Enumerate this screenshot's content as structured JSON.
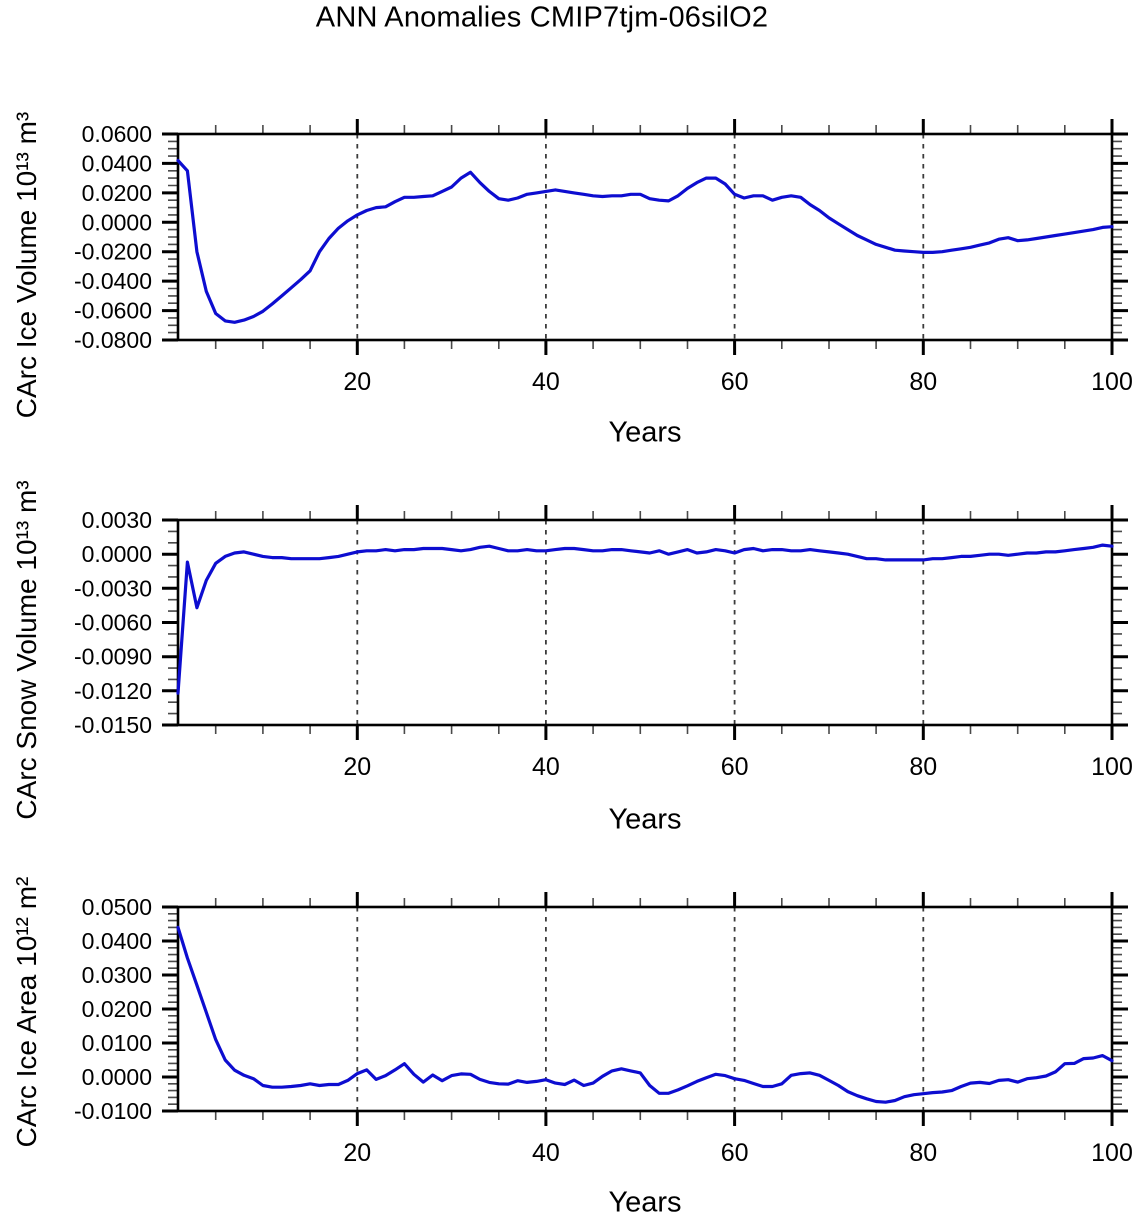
{
  "figure": {
    "title": "ANN Anomalies CMIP7tjm-06silO2",
    "background": "#ffffff",
    "axis_color": "#000000",
    "grid_color": "#3c3c3c",
    "line_color": "#0d0dd0"
  },
  "chart_data": [
    {
      "type": "line",
      "name": "carc-ice-volume",
      "ylabel": "CArc Ice Volume 10¹³ m³",
      "xlabel": "Years",
      "x_range": [
        1,
        100
      ],
      "x_tick_labels": [
        "20",
        "40",
        "60",
        "80",
        "100"
      ],
      "x_major_ticks": [
        20,
        40,
        60,
        80,
        100
      ],
      "x_minor_tick_step": 5,
      "grid_x": [
        20,
        40,
        60,
        80
      ],
      "ylim": [
        -0.08,
        0.06
      ],
      "y_tick_labels": [
        "0.0600",
        "0.0400",
        "0.0200",
        "0.0000",
        "-0.0200",
        "-0.0400",
        "-0.0600",
        "-0.0800"
      ],
      "y_minor_tick_step": 0.005,
      "legend": "none",
      "values": [
        0.042,
        0.035,
        -0.02,
        -0.047,
        -0.062,
        -0.067,
        -0.068,
        -0.0665,
        -0.064,
        -0.0605,
        -0.0555,
        -0.05,
        -0.0445,
        -0.039,
        -0.033,
        -0.02,
        -0.011,
        -0.004,
        0.001,
        0.005,
        0.008,
        0.01,
        0.0105,
        0.014,
        0.017,
        0.017,
        0.0175,
        0.018,
        0.021,
        0.024,
        0.03,
        0.034,
        0.027,
        0.021,
        0.016,
        0.015,
        0.0165,
        0.019,
        0.02,
        0.021,
        0.022,
        0.021,
        0.02,
        0.019,
        0.018,
        0.0175,
        0.018,
        0.018,
        0.019,
        0.019,
        0.016,
        0.015,
        0.0145,
        0.018,
        0.023,
        0.027,
        0.03,
        0.03,
        0.026,
        0.019,
        0.0165,
        0.018,
        0.018,
        0.015,
        0.017,
        0.018,
        0.017,
        0.012,
        0.008,
        0.003,
        -0.001,
        -0.005,
        -0.009,
        -0.012,
        -0.015,
        -0.017,
        -0.019,
        -0.0195,
        -0.02,
        -0.0205,
        -0.0205,
        -0.02,
        -0.019,
        -0.018,
        -0.017,
        -0.0155,
        -0.014,
        -0.0115,
        -0.0105,
        -0.0125,
        -0.012,
        -0.011,
        -0.01,
        -0.009,
        -0.008,
        -0.007,
        -0.006,
        -0.005,
        -0.0035,
        -0.003
      ]
    },
    {
      "type": "line",
      "name": "carc-snow-volume",
      "ylabel": "CArc Snow Volume 10¹³ m³",
      "xlabel": "Years",
      "x_range": [
        1,
        100
      ],
      "x_tick_labels": [
        "20",
        "40",
        "60",
        "80",
        "100"
      ],
      "x_major_ticks": [
        20,
        40,
        60,
        80,
        100
      ],
      "x_minor_tick_step": 5,
      "grid_x": [
        20,
        40,
        60,
        80
      ],
      "ylim": [
        -0.015,
        0.003
      ],
      "y_tick_labels": [
        "0.0030",
        "0.0000",
        "-0.0030",
        "-0.0060",
        "-0.0090",
        "-0.0120",
        "-0.0150"
      ],
      "y_minor_tick_step": 0.001,
      "legend": "none",
      "values": [
        -0.0122,
        -0.0007,
        -0.0047,
        -0.0023,
        -0.0008,
        -0.0002,
        0.0001,
        0.0002,
        0.0,
        -0.0002,
        -0.0003,
        -0.0003,
        -0.0004,
        -0.0004,
        -0.0004,
        -0.0004,
        -0.0003,
        -0.0002,
        0.0,
        0.0002,
        0.0003,
        0.0003,
        0.0004,
        0.0003,
        0.0004,
        0.0004,
        0.0005,
        0.0005,
        0.0005,
        0.0004,
        0.0003,
        0.0004,
        0.0006,
        0.0007,
        0.0005,
        0.0003,
        0.0003,
        0.0004,
        0.0003,
        0.0003,
        0.0004,
        0.0005,
        0.0005,
        0.0004,
        0.0003,
        0.0003,
        0.0004,
        0.0004,
        0.0003,
        0.0002,
        0.0001,
        0.0003,
        0.0,
        0.0002,
        0.0004,
        0.0001,
        0.0002,
        0.0004,
        0.0003,
        0.0001,
        0.0004,
        0.0005,
        0.0003,
        0.0004,
        0.0004,
        0.0003,
        0.0003,
        0.0004,
        0.0003,
        0.0002,
        0.0001,
        0.0,
        -0.0002,
        -0.0004,
        -0.0004,
        -0.0005,
        -0.0005,
        -0.0005,
        -0.0005,
        -0.0005,
        -0.0004,
        -0.0004,
        -0.0003,
        -0.0002,
        -0.0002,
        -0.0001,
        0.0,
        0.0,
        -0.0001,
        0.0,
        0.0001,
        0.0001,
        0.0002,
        0.0002,
        0.0003,
        0.0004,
        0.0005,
        0.0006,
        0.0008,
        0.0007
      ]
    },
    {
      "type": "line",
      "name": "carc-ice-area",
      "ylabel": "CArc Ice Area 10¹² m²",
      "xlabel": "Years",
      "x_range": [
        1,
        100
      ],
      "x_tick_labels": [
        "20",
        "40",
        "60",
        "80",
        "100"
      ],
      "x_major_ticks": [
        20,
        40,
        60,
        80,
        100
      ],
      "x_minor_tick_step": 5,
      "grid_x": [
        20,
        40,
        60,
        80
      ],
      "ylim": [
        -0.01,
        0.05
      ],
      "y_tick_labels": [
        "0.0500",
        "0.0400",
        "0.0300",
        "0.0200",
        "0.0100",
        "0.0000",
        "-0.0100"
      ],
      "y_minor_tick_step": 0.002,
      "legend": "none",
      "values": [
        0.044,
        0.035,
        0.027,
        0.019,
        0.011,
        0.005,
        0.002,
        0.0005,
        -0.0005,
        -0.0025,
        -0.003,
        -0.003,
        -0.0028,
        -0.0025,
        -0.002,
        -0.0025,
        -0.0022,
        -0.0022,
        -0.001,
        0.001,
        0.0021,
        -0.0007,
        0.0004,
        0.0021,
        0.0039,
        0.0008,
        -0.0015,
        0.0006,
        -0.0011,
        0.0004,
        0.0009,
        0.0008,
        -0.0007,
        -0.0016,
        -0.002,
        -0.0021,
        -0.0011,
        -0.0016,
        -0.0013,
        -0.0008,
        -0.0018,
        -0.0022,
        -0.0009,
        -0.0025,
        -0.0018,
        0.0002,
        0.0018,
        0.0024,
        0.0018,
        0.0012,
        -0.0025,
        -0.0048,
        -0.0048,
        -0.0038,
        -0.0026,
        -0.0013,
        -0.0002,
        0.0008,
        0.0004,
        -0.0005,
        -0.001,
        -0.0019,
        -0.0028,
        -0.0028,
        -0.002,
        0.0005,
        0.001,
        0.0012,
        0.0005,
        -0.001,
        -0.0025,
        -0.0043,
        -0.0055,
        -0.0064,
        -0.0072,
        -0.0074,
        -0.0069,
        -0.0058,
        -0.0052,
        -0.0049,
        -0.0046,
        -0.0044,
        -0.004,
        -0.0028,
        -0.0018,
        -0.0016,
        -0.0019,
        -0.001,
        -0.0008,
        -0.0015,
        -0.0005,
        -0.0002,
        0.0003,
        0.0015,
        0.0039,
        0.004,
        0.0054,
        0.0056,
        0.0063,
        0.0048
      ]
    }
  ]
}
